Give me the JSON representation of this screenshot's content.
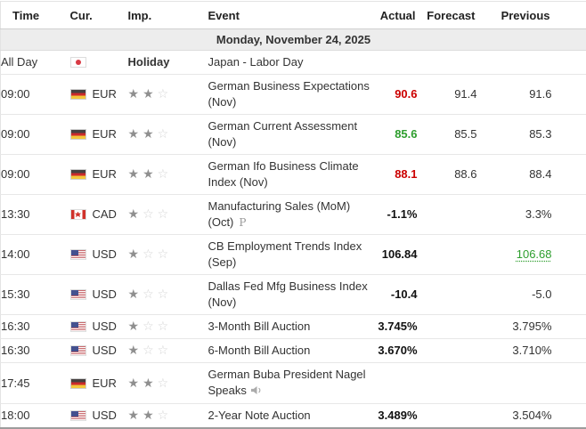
{
  "colors": {
    "positive": "#2e9e2e",
    "negative": "#cc0000"
  },
  "icons": {
    "star_filled": "★",
    "star_empty": "☆",
    "preliminary": "P"
  },
  "header": {
    "columns": [
      "Time",
      "Cur.",
      "Imp.",
      "Event",
      "Actual",
      "Forecast",
      "Previous"
    ]
  },
  "date_header": "Monday, November 24, 2025",
  "rows": [
    {
      "time": "All Day",
      "flag": "japan",
      "currency": "",
      "holiday_label": "Holiday",
      "event": "Japan - Labor Day",
      "actual": "",
      "forecast": "",
      "previous": ""
    },
    {
      "time": "09:00",
      "flag": "germany",
      "currency": "EUR",
      "stars": 2,
      "event": "German Business Expectations (Nov)",
      "actual": "90.6",
      "actual_color": "negative",
      "forecast": "91.4",
      "previous": "91.6"
    },
    {
      "time": "09:00",
      "flag": "germany",
      "currency": "EUR",
      "stars": 2,
      "event": "German Current Assessment (Nov)",
      "actual": "85.6",
      "actual_color": "positive",
      "forecast": "85.5",
      "previous": "85.3"
    },
    {
      "time": "09:00",
      "flag": "germany",
      "currency": "EUR",
      "stars": 2,
      "event": "German Ifo Business Climate Index (Nov)",
      "actual": "88.1",
      "actual_color": "negative",
      "forecast": "88.6",
      "previous": "88.4"
    },
    {
      "time": "13:30",
      "flag": "canada",
      "currency": "CAD",
      "stars": 1,
      "event": "Manufacturing Sales (MoM) (Oct)",
      "event_icon": "preliminary",
      "actual": "-1.1%",
      "forecast": "",
      "previous": "3.3%"
    },
    {
      "time": "14:00",
      "flag": "usa",
      "currency": "USD",
      "stars": 1,
      "event": "CB Employment Trends Index (Sep)",
      "actual": "106.84",
      "forecast": "",
      "previous": "106.68",
      "previous_revised": true
    },
    {
      "time": "15:30",
      "flag": "usa",
      "currency": "USD",
      "stars": 1,
      "event": "Dallas Fed Mfg Business Index (Nov)",
      "actual": "-10.4",
      "forecast": "",
      "previous": "-5.0"
    },
    {
      "time": "16:30",
      "flag": "usa",
      "currency": "USD",
      "stars": 1,
      "event": "3-Month Bill Auction",
      "actual": "3.745%",
      "forecast": "",
      "previous": "3.795%"
    },
    {
      "time": "16:30",
      "flag": "usa",
      "currency": "USD",
      "stars": 1,
      "event": "6-Month Bill Auction",
      "actual": "3.670%",
      "forecast": "",
      "previous": "3.710%"
    },
    {
      "time": "17:45",
      "flag": "germany",
      "currency": "EUR",
      "stars": 2,
      "event": "German Buba President Nagel Speaks",
      "event_icon": "speaker",
      "actual": "",
      "forecast": "",
      "previous": ""
    },
    {
      "time": "18:00",
      "flag": "usa",
      "currency": "USD",
      "stars": 2,
      "event": "2-Year Note Auction",
      "actual": "3.489%",
      "forecast": "",
      "previous": "3.504%"
    }
  ]
}
